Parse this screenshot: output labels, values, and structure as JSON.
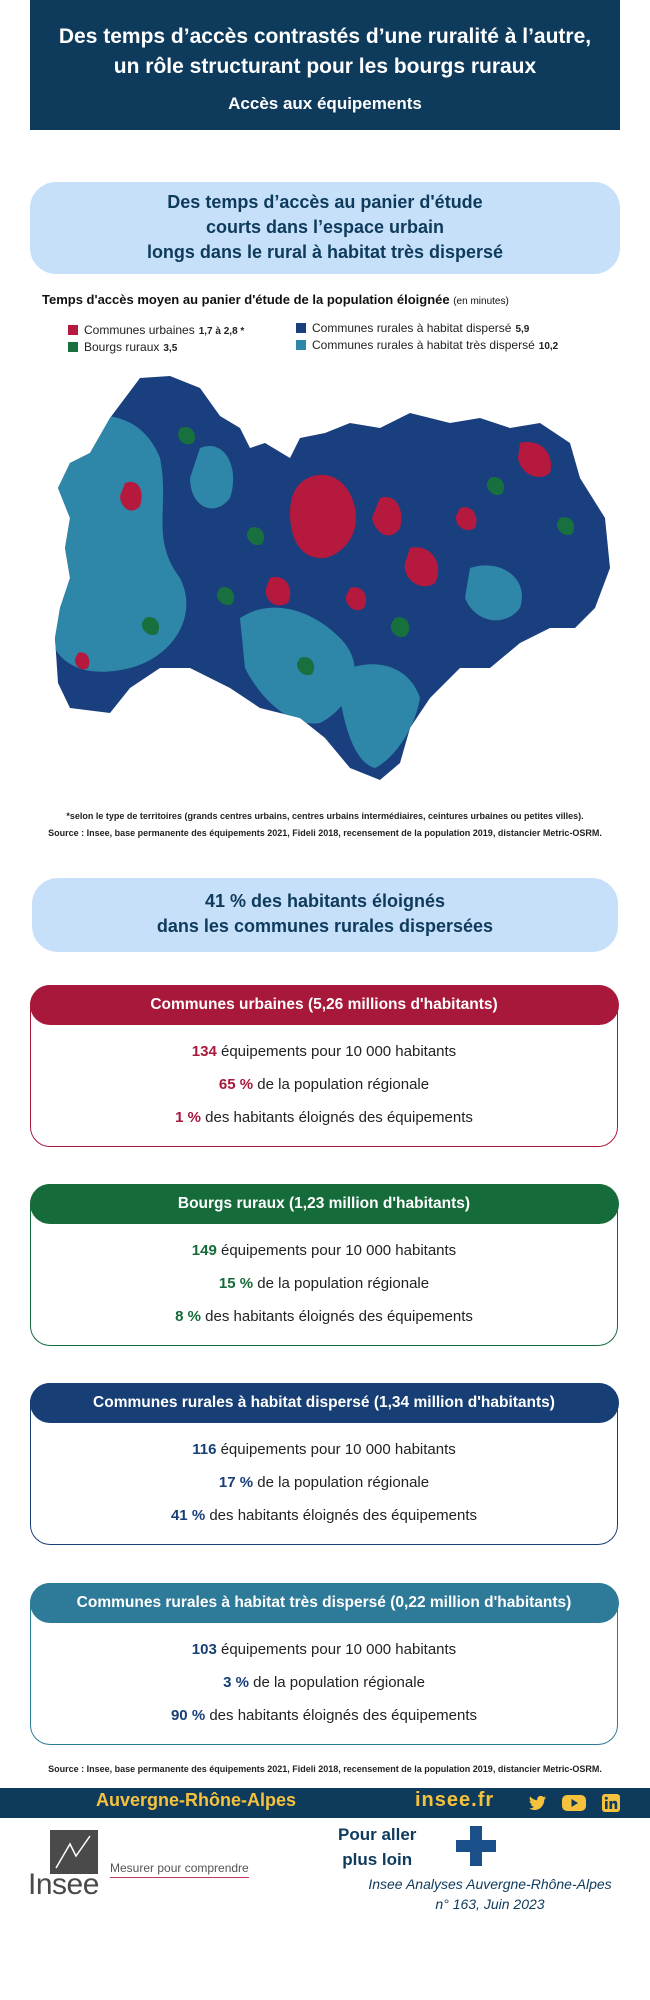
{
  "header": {
    "title_line1": "Des temps d’accès contrastés d’une ruralité à l’autre,",
    "title_line2": "un rôle structurant pour les bourgs ruraux",
    "subtitle": "Accès aux équipements"
  },
  "section1": {
    "line1": "Des temps d’accès au panier d'étude",
    "line2": "courts dans l’espace urbain",
    "line3": "longs dans le rural à habitat très dispersé"
  },
  "map": {
    "title": "Temps d'accès moyen au panier d'étude de la population éloignée",
    "unit": "(en minutes)",
    "legend": [
      {
        "label": "Communes urbaines",
        "value": "1,7 à 2,8 *",
        "color": "#b5193e"
      },
      {
        "label": "Bourgs ruraux",
        "value": "3,5",
        "color": "#18703e"
      },
      {
        "label": "Communes rurales à habitat dispersé",
        "value": "5,9",
        "color": "#1a3f7e"
      },
      {
        "label": "Communes rurales à habitat très dispersé",
        "value": "10,2",
        "color": "#2e86a8"
      }
    ],
    "footnote": "*selon le type de territoires (grands centres urbains, centres urbains intermédiaires, ceintures urbaines ou petites villes).",
    "source": "Source : Insee, base permanente des équipements 2021, Fideli 2018, recensement de la population 2019, distancier Metric-OSRM."
  },
  "section2": {
    "line1": "41 % des habitants éloignés",
    "line2": "dans les communes rurales dispersées"
  },
  "cards": [
    {
      "title": "Communes urbaines (5,26 millions d'habitants)",
      "color": "#a8183a",
      "v1": "134",
      "t1": "équipements pour 10 000 habitants",
      "v2": "65 %",
      "t2": "de la population régionale",
      "v3": "1 %",
      "t3": "des habitants éloignés des équipements"
    },
    {
      "title": "Bourgs ruraux (1,23 million d'habitants)",
      "color": "#156b3a",
      "v1": "149",
      "t1": "équipements pour 10 000 habitants",
      "v2": "15 %",
      "t2": "de la population régionale",
      "v3": "8 %",
      "t3": "des habitants éloignés des équipements"
    },
    {
      "title": "Communes rurales  à habitat dispersé (1,34 million d'habitants)",
      "color": "#173f76",
      "v1": "116",
      "t1": "équipements pour 10 000 habitants",
      "v2": "17 %",
      "t2": "de la population régionale",
      "v3": "41 %",
      "t3": "des habitants éloignés des équipements"
    },
    {
      "title": "Communes rurales à habitat très dispersé (0,22 million d'habitants)",
      "color": "#2e7a99",
      "v1": "103",
      "t1": "équipements pour 10 000 habitants",
      "v2": "3 %",
      "t2": "de la population régionale",
      "v3": "90 %",
      "t3": "des habitants éloignés des équipements"
    }
  ],
  "bottom_source": "Source : Insee, base permanente des équipements 2021, Fideli 2018, recensement de la population 2019, distancier Metric-OSRM.",
  "footer": {
    "region": "Auvergne-Rhône-Alpes",
    "site": "insee.fr",
    "social_icons": [
      "twitter-icon",
      "youtube-icon",
      "linkedin-icon"
    ],
    "logo": "Insee",
    "tagline": "Mesurer pour comprendre",
    "more_line1": "Pour aller",
    "more_line2": "plus loin",
    "pub_line1": "Insee Analyses Auvergne-Rhône-Alpes",
    "pub_line2": "n° 163, Juin 2023"
  }
}
